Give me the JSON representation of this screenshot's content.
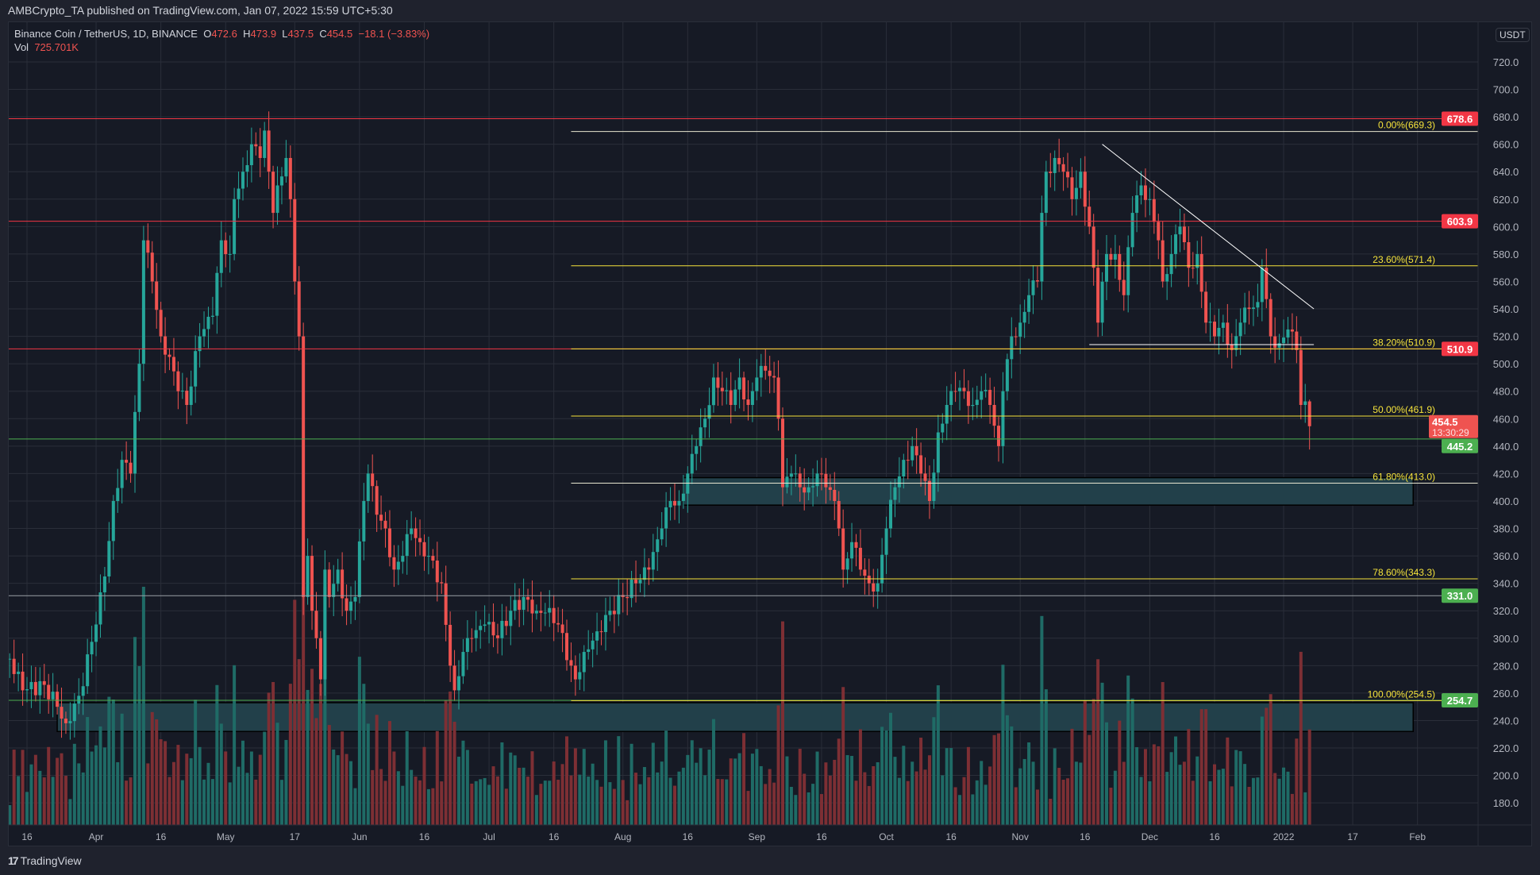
{
  "header": {
    "published": "AMBCrypto_TA published on TradingView.com, Jan 07, 2022 15:59 UTC+5:30"
  },
  "legend": {
    "symbol": "Binance Coin / TetherUS, 1D, BINANCE",
    "o_label": "O",
    "o": "472.6",
    "h_label": "H",
    "h": "473.9",
    "l_label": "L",
    "l": "437.5",
    "c_label": "C",
    "c": "454.5",
    "change": "−18.1 (−3.83%)",
    "vol_label": "Vol",
    "vol": "725.701K"
  },
  "footer": {
    "brand": "TradingView"
  },
  "colors": {
    "up": "#26a69a",
    "down": "#ef5350",
    "fib": "#f5e33b",
    "resistance": "#f23645",
    "support": "#4caf50",
    "zone": "#22404a",
    "bg": "#161a25",
    "grid": "#2a2e39"
  },
  "chart_data": {
    "type": "candlestick",
    "symbol": "BNBUSDT",
    "interval": "1D",
    "unit_label": "USDT",
    "ylim": [
      170,
      735
    ],
    "y_ticks": [
      "180.0",
      "200.0",
      "220.0",
      "240.0",
      "260.0",
      "280.0",
      "300.0",
      "320.0",
      "340.0",
      "360.0",
      "380.0",
      "400.0",
      "420.0",
      "440.0",
      "460.0",
      "480.0",
      "500.0",
      "520.0",
      "540.0",
      "560.0",
      "580.0",
      "600.0",
      "620.0",
      "640.0",
      "660.0",
      "680.0",
      "700.0",
      "720.0"
    ],
    "x_ticks": [
      {
        "label": "16",
        "date": "2021-03-16"
      },
      {
        "label": "Apr",
        "date": "2021-04-01"
      },
      {
        "label": "16",
        "date": "2021-04-16"
      },
      {
        "label": "May",
        "date": "2021-05-01"
      },
      {
        "label": "17",
        "date": "2021-05-17"
      },
      {
        "label": "Jun",
        "date": "2021-06-01"
      },
      {
        "label": "16",
        "date": "2021-06-16"
      },
      {
        "label": "Jul",
        "date": "2021-07-01"
      },
      {
        "label": "16",
        "date": "2021-07-16"
      },
      {
        "label": "Aug",
        "date": "2021-08-01"
      },
      {
        "label": "16",
        "date": "2021-08-16"
      },
      {
        "label": "Sep",
        "date": "2021-09-01"
      },
      {
        "label": "16",
        "date": "2021-09-16"
      },
      {
        "label": "Oct",
        "date": "2021-10-01"
      },
      {
        "label": "16",
        "date": "2021-10-16"
      },
      {
        "label": "Nov",
        "date": "2021-11-01"
      },
      {
        "label": "16",
        "date": "2021-11-16"
      },
      {
        "label": "Dec",
        "date": "2021-12-01"
      },
      {
        "label": "16",
        "date": "2021-12-16"
      },
      {
        "label": "2022",
        "date": "2022-01-01"
      },
      {
        "label": "17",
        "date": "2022-01-17"
      },
      {
        "label": "Feb",
        "date": "2022-02-01"
      }
    ],
    "approx_closes": [
      [
        "2021-03-12",
        285
      ],
      [
        "2021-03-15",
        262
      ],
      [
        "2021-03-20",
        266
      ],
      [
        "2021-03-23",
        250
      ],
      [
        "2021-03-25",
        238
      ],
      [
        "2021-03-28",
        258
      ],
      [
        "2021-04-01",
        310
      ],
      [
        "2021-04-03",
        345
      ],
      [
        "2021-04-05",
        400
      ],
      [
        "2021-04-07",
        430
      ],
      [
        "2021-04-09",
        420
      ],
      [
        "2021-04-11",
        500
      ],
      [
        "2021-04-12",
        590
      ],
      [
        "2021-04-14",
        560
      ],
      [
        "2021-04-16",
        520
      ],
      [
        "2021-04-18",
        505
      ],
      [
        "2021-04-20",
        480
      ],
      [
        "2021-04-22",
        470
      ],
      [
        "2021-04-25",
        520
      ],
      [
        "2021-04-28",
        535
      ],
      [
        "2021-04-30",
        590
      ],
      [
        "2021-05-02",
        580
      ],
      [
        "2021-05-03",
        620
      ],
      [
        "2021-05-05",
        640
      ],
      [
        "2021-05-07",
        660
      ],
      [
        "2021-05-09",
        650
      ],
      [
        "2021-05-10",
        670
      ],
      [
        "2021-05-12",
        610
      ],
      [
        "2021-05-13",
        630
      ],
      [
        "2021-05-15",
        650
      ],
      [
        "2021-05-16",
        620
      ],
      [
        "2021-05-17",
        560
      ],
      [
        "2021-05-18",
        520
      ],
      [
        "2021-05-19",
        330
      ],
      [
        "2021-05-20",
        360
      ],
      [
        "2021-05-21",
        320
      ],
      [
        "2021-05-22",
        300
      ],
      [
        "2021-05-23",
        270
      ],
      [
        "2021-05-24",
        350
      ],
      [
        "2021-05-25",
        330
      ],
      [
        "2021-05-27",
        350
      ],
      [
        "2021-05-29",
        320
      ],
      [
        "2021-05-31",
        330
      ],
      [
        "2021-06-02",
        400
      ],
      [
        "2021-06-03",
        420
      ],
      [
        "2021-06-05",
        390
      ],
      [
        "2021-06-07",
        380
      ],
      [
        "2021-06-09",
        350
      ],
      [
        "2021-06-11",
        360
      ],
      [
        "2021-06-13",
        380
      ],
      [
        "2021-06-15",
        370
      ],
      [
        "2021-06-17",
        360
      ],
      [
        "2021-06-20",
        340
      ],
      [
        "2021-06-22",
        280
      ],
      [
        "2021-06-23",
        262
      ],
      [
        "2021-06-25",
        290
      ],
      [
        "2021-06-27",
        300
      ],
      [
        "2021-06-30",
        310
      ],
      [
        "2021-07-03",
        300
      ],
      [
        "2021-07-06",
        320
      ],
      [
        "2021-07-09",
        330
      ],
      [
        "2021-07-12",
        320
      ],
      [
        "2021-07-15",
        322
      ],
      [
        "2021-07-17",
        310
      ],
      [
        "2021-07-20",
        280
      ],
      [
        "2021-07-21",
        270
      ],
      [
        "2021-07-23",
        290
      ],
      [
        "2021-07-26",
        305
      ],
      [
        "2021-07-29",
        320
      ],
      [
        "2021-08-01",
        330
      ],
      [
        "2021-08-04",
        340
      ],
      [
        "2021-08-07",
        350
      ],
      [
        "2021-08-10",
        380
      ],
      [
        "2021-08-12",
        400
      ],
      [
        "2021-08-14",
        400
      ],
      [
        "2021-08-16",
        420
      ],
      [
        "2021-08-18",
        440
      ],
      [
        "2021-08-20",
        460
      ],
      [
        "2021-08-22",
        490
      ],
      [
        "2021-08-24",
        480
      ],
      [
        "2021-08-26",
        470
      ],
      [
        "2021-08-28",
        490
      ],
      [
        "2021-08-30",
        470
      ],
      [
        "2021-09-01",
        490
      ],
      [
        "2021-09-03",
        495
      ],
      [
        "2021-09-05",
        490
      ],
      [
        "2021-09-06",
        460
      ],
      [
        "2021-09-07",
        410
      ],
      [
        "2021-09-09",
        420
      ],
      [
        "2021-09-11",
        410
      ],
      [
        "2021-09-13",
        410
      ],
      [
        "2021-09-15",
        420
      ],
      [
        "2021-09-17",
        410
      ],
      [
        "2021-09-19",
        400
      ],
      [
        "2021-09-20",
        380
      ],
      [
        "2021-09-21",
        350
      ],
      [
        "2021-09-23",
        370
      ],
      [
        "2021-09-25",
        350
      ],
      [
        "2021-09-27",
        340
      ],
      [
        "2021-09-29",
        340
      ],
      [
        "2021-10-01",
        380
      ],
      [
        "2021-10-03",
        410
      ],
      [
        "2021-10-05",
        430
      ],
      [
        "2021-10-07",
        440
      ],
      [
        "2021-10-09",
        420
      ],
      [
        "2021-10-11",
        400
      ],
      [
        "2021-10-13",
        450
      ],
      [
        "2021-10-15",
        470
      ],
      [
        "2021-10-17",
        480
      ],
      [
        "2021-10-19",
        480
      ],
      [
        "2021-10-21",
        470
      ],
      [
        "2021-10-23",
        480
      ],
      [
        "2021-10-25",
        470
      ],
      [
        "2021-10-27",
        440
      ],
      [
        "2021-10-28",
        480
      ],
      [
        "2021-10-30",
        520
      ],
      [
        "2021-11-01",
        530
      ],
      [
        "2021-11-03",
        550
      ],
      [
        "2021-11-05",
        560
      ],
      [
        "2021-11-06",
        610
      ],
      [
        "2021-11-07",
        640
      ],
      [
        "2021-11-09",
        650
      ],
      [
        "2021-11-11",
        640
      ],
      [
        "2021-11-13",
        620
      ],
      [
        "2021-11-15",
        640
      ],
      [
        "2021-11-17",
        600
      ],
      [
        "2021-11-18",
        570
      ],
      [
        "2021-11-19",
        530
      ],
      [
        "2021-11-21",
        580
      ],
      [
        "2021-11-23",
        580
      ],
      [
        "2021-11-25",
        550
      ],
      [
        "2021-11-27",
        610
      ],
      [
        "2021-11-29",
        630
      ],
      [
        "2021-12-01",
        620
      ],
      [
        "2021-12-03",
        590
      ],
      [
        "2021-12-04",
        560
      ],
      [
        "2021-12-06",
        580
      ],
      [
        "2021-12-08",
        600
      ],
      [
        "2021-12-10",
        570
      ],
      [
        "2021-12-12",
        580
      ],
      [
        "2021-12-14",
        530
      ],
      [
        "2021-12-16",
        520
      ],
      [
        "2021-12-18",
        530
      ],
      [
        "2021-12-20",
        510
      ],
      [
        "2021-12-22",
        530
      ],
      [
        "2021-12-24",
        540
      ],
      [
        "2021-12-26",
        545
      ],
      [
        "2021-12-27",
        570
      ],
      [
        "2021-12-29",
        520
      ],
      [
        "2021-12-31",
        515
      ],
      [
        "2022-01-02",
        525
      ],
      [
        "2022-01-04",
        510
      ],
      [
        "2022-01-05",
        470
      ],
      [
        "2022-01-06",
        472.6
      ],
      [
        "2022-01-07",
        454.5
      ]
    ],
    "horizontal_levels": [
      {
        "price": 678.6,
        "label": "678.6",
        "kind": "resistance"
      },
      {
        "price": 603.9,
        "label": "603.9",
        "kind": "resistance"
      },
      {
        "price": 510.9,
        "label": "510.9",
        "kind": "resistance"
      },
      {
        "price": 445.2,
        "label": "445.2",
        "kind": "support"
      },
      {
        "price": 331.0,
        "label": "331.0",
        "kind": "support"
      },
      {
        "price": 254.7,
        "label": "254.7",
        "kind": "support"
      }
    ],
    "fibonacci": {
      "start_date": "2021-07-20",
      "levels": [
        {
          "price": 669.3,
          "label": "0.00%(669.3)"
        },
        {
          "price": 571.4,
          "label": "23.60%(571.4)"
        },
        {
          "price": 510.9,
          "label": "38.20%(510.9)"
        },
        {
          "price": 461.9,
          "label": "50.00%(461.9)"
        },
        {
          "price": 413.0,
          "label": "61.80%(413.0)"
        },
        {
          "price": 343.3,
          "label": "78.60%(343.3)"
        },
        {
          "price": 254.5,
          "label": "100.00%(254.5)"
        }
      ]
    },
    "zones": [
      {
        "from_date": "2021-08-15",
        "to_date": "2022-01-31",
        "top": 417,
        "bottom": 397
      },
      {
        "from_date": "2021-03-23",
        "to_date": "2022-01-31",
        "top": 253,
        "bottom": 232
      }
    ],
    "trendlines": [
      {
        "from": [
          "2021-11-20",
          660
        ],
        "to": [
          "2022-01-08",
          540
        ]
      },
      {
        "from": [
          "2021-11-17",
          514
        ],
        "to": [
          "2022-01-08",
          514
        ]
      }
    ],
    "last_price": {
      "value": "454.5",
      "countdown": "13:30:29"
    }
  }
}
